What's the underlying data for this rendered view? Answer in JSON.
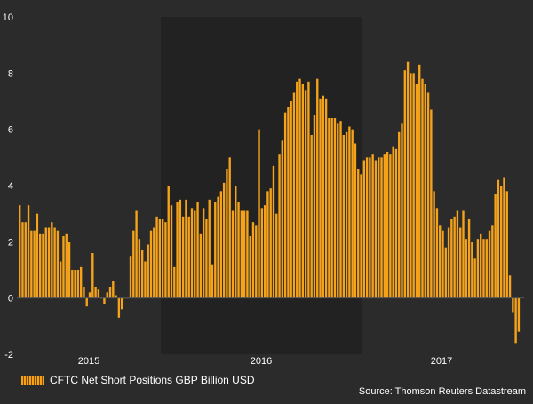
{
  "chart_data": {
    "type": "bar",
    "title": "",
    "xlabel": "",
    "ylabel": "",
    "ylim": [
      -2,
      10
    ],
    "yticks": [
      -2,
      0,
      2,
      4,
      6,
      8,
      10
    ],
    "xtick_labels": [
      "2015",
      "2016",
      "2017"
    ],
    "grid": false,
    "legend_placement": "bottom-left",
    "bar_color": "#f5a31a",
    "shaded_band_color": "#222222",
    "series": [
      {
        "name": "CFTC Net Short Positions GBP Billion USD",
        "values": [
          3.3,
          2.7,
          2.7,
          3.3,
          2.4,
          2.4,
          3.0,
          2.3,
          2.3,
          2.5,
          2.5,
          2.7,
          2.5,
          2.4,
          1.3,
          2.2,
          2.3,
          2.0,
          1.0,
          1.0,
          1.0,
          1.1,
          0.4,
          -0.3,
          0.2,
          1.6,
          0.4,
          0.3,
          0.0,
          -0.2,
          0.2,
          0.4,
          0.6,
          0.1,
          -0.7,
          -0.4,
          0.0,
          0.0,
          1.5,
          2.4,
          3.1,
          2.1,
          1.7,
          1.3,
          1.9,
          2.4,
          2.5,
          2.9,
          2.8,
          2.8,
          2.7,
          4.0,
          3.3,
          1.1,
          3.4,
          3.5,
          2.9,
          3.5,
          2.9,
          3.2,
          3.1,
          3.4,
          2.3,
          3.2,
          2.8,
          3.5,
          1.2,
          3.4,
          3.6,
          3.8,
          4.1,
          4.6,
          5.0,
          3.1,
          4.0,
          3.4,
          3.1,
          3.1,
          3.1,
          2.2,
          2.7,
          2.6,
          6.0,
          3.2,
          3.3,
          3.8,
          3.9,
          4.7,
          3.0,
          5.1,
          5.6,
          6.6,
          6.8,
          7.0,
          7.3,
          7.7,
          7.8,
          7.6,
          7.4,
          7.7,
          5.8,
          6.5,
          7.8,
          7.1,
          7.2,
          7.1,
          6.4,
          6.4,
          6.4,
          6.2,
          6.3,
          5.8,
          5.9,
          6.1,
          6.0,
          5.5,
          4.6,
          4.4,
          4.9,
          5.0,
          5.0,
          5.1,
          4.9,
          5.0,
          5.0,
          5.1,
          5.2,
          5.1,
          5.4,
          5.3,
          5.9,
          6.2,
          8.1,
          8.4,
          8.0,
          8.0,
          7.6,
          8.3,
          7.8,
          7.6,
          7.3,
          6.7,
          3.8,
          3.2,
          2.6,
          2.4,
          1.8,
          2.5,
          2.8,
          2.9,
          3.1,
          2.5,
          3.1,
          2.1,
          2.8,
          2.0,
          1.4,
          2.1,
          2.3,
          2.1,
          2.1,
          2.4,
          2.6,
          3.7,
          4.2,
          4.0,
          4.3,
          3.8,
          0.8,
          -0.5,
          -1.6,
          -1.2
        ]
      }
    ]
  },
  "legend": {
    "label": "CFTC Net Short Positions GBP Billion USD"
  },
  "source": {
    "text": "Source: Thomson Reuters Datastream"
  }
}
